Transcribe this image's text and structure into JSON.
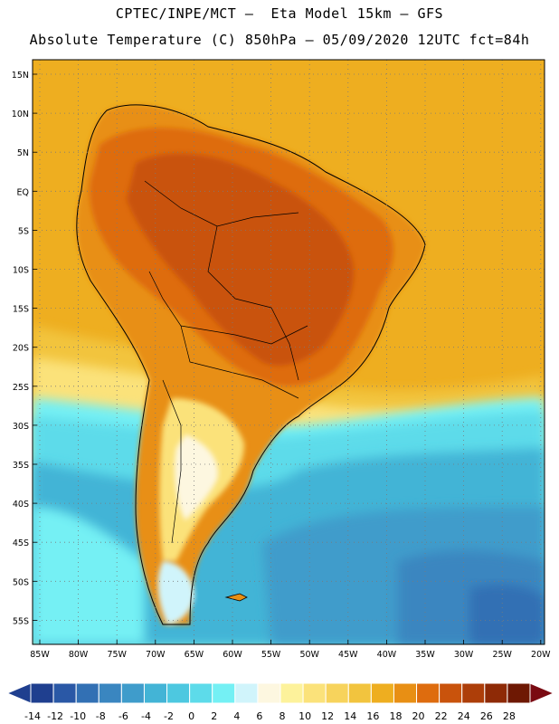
{
  "header": {
    "line1": "CPTEC/INPE/MCT –  Eta Model 15km – GFS",
    "line2": "Absolute Temperature (C) 850hPa – 05/09/2020 12UTC fct=84h"
  },
  "axes": {
    "lat_labels": [
      "15N",
      "10N",
      "5N",
      "EQ",
      "5S",
      "10S",
      "15S",
      "20S",
      "25S",
      "30S",
      "35S",
      "40S",
      "45S",
      "50S",
      "55S"
    ],
    "lon_labels": [
      "85W",
      "80W",
      "75W",
      "70W",
      "65W",
      "60W",
      "55W",
      "50W",
      "45W",
      "40W",
      "35W",
      "30W",
      "25W",
      "20W"
    ]
  },
  "colorbar": {
    "labels": [
      "-14",
      "-12",
      "-10",
      "-8",
      "-6",
      "-4",
      "-2",
      "0",
      "2",
      "4",
      "6",
      "8",
      "10",
      "12",
      "14",
      "16",
      "18",
      "20",
      "22",
      "24",
      "26",
      "28"
    ],
    "colors": [
      "#1f3f8f",
      "#2a58a6",
      "#3270b4",
      "#3a86c0",
      "#3f9ccb",
      "#43b4d6",
      "#4dc8e0",
      "#5ddbea",
      "#74f0f4",
      "#d0f4fb",
      "#fdf7e0",
      "#fdf29b",
      "#fbe27a",
      "#f7d35c",
      "#f2c43e",
      "#eeae20",
      "#e88f14",
      "#de6c0e",
      "#c9530c",
      "#ad3e09",
      "#8e2a06",
      "#6e1803"
    ],
    "units": "C"
  },
  "map": {
    "region": "South America",
    "ocean_colors": {
      "warm_north": "#eeae20",
      "mid": "#f2c43e",
      "cool": "#5ddbea",
      "cold": "#3f9ccb",
      "colder": "#3270b4"
    },
    "land_colors": {
      "hot": "#c9530c",
      "warm": "#de6c0e",
      "mild": "#e88f14"
    }
  }
}
